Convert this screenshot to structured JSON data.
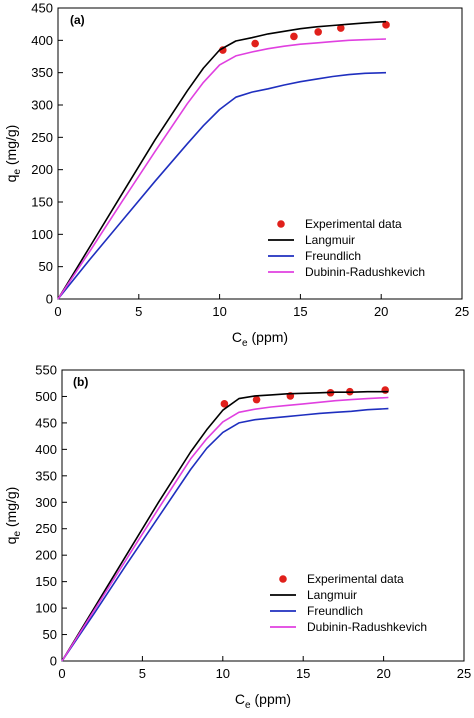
{
  "colors": {
    "experimental": "#e0201b",
    "langmuir": "#000000",
    "freundlich": "#1f2fbf",
    "dubinin": "#e040e0",
    "axis": "#000000"
  },
  "chart_data": [
    {
      "type": "line",
      "panel_label": "(a)",
      "xlabel": "C",
      "xlabel_sub": "e",
      "xlabel_unit": " (ppm)",
      "ylabel": "q",
      "ylabel_sub": "e",
      "ylabel_unit": " (mg/g)",
      "xlim": [
        0,
        25
      ],
      "ylim": [
        0,
        450
      ],
      "xticks": [
        0,
        5,
        10,
        15,
        20,
        25
      ],
      "yticks": [
        0,
        50,
        100,
        150,
        200,
        250,
        300,
        350,
        400,
        450
      ],
      "grid": false,
      "legend_position": "lower-right",
      "series": [
        {
          "name": "Experimental data",
          "kind": "scatter",
          "color_key": "experimental",
          "x": [
            10.2,
            12.2,
            14.6,
            16.1,
            17.5,
            20.3
          ],
          "y": [
            385,
            395,
            406,
            413,
            419,
            424
          ]
        },
        {
          "name": "Langmuir",
          "kind": "line",
          "color_key": "langmuir",
          "x": [
            0,
            2,
            4,
            6,
            8,
            9,
            10,
            11,
            12,
            13,
            14,
            15,
            16,
            17,
            18,
            19,
            20.3
          ],
          "y": [
            0,
            82,
            164,
            246,
            322,
            357,
            385,
            399,
            404,
            410,
            414,
            418,
            421,
            423,
            425,
            427,
            429
          ]
        },
        {
          "name": "Freundlich",
          "kind": "line",
          "color_key": "freundlich",
          "x": [
            0,
            2,
            4,
            6,
            8,
            9,
            10,
            11,
            12,
            13,
            14,
            15,
            16,
            17,
            18,
            19,
            20.3
          ],
          "y": [
            0,
            62,
            122,
            182,
            240,
            268,
            293,
            312,
            320,
            325,
            331,
            336,
            340,
            344,
            347,
            349,
            350
          ]
        },
        {
          "name": "Dubinin-Radushkevich",
          "kind": "line",
          "color_key": "dubinin",
          "x": [
            0,
            2,
            4,
            6,
            8,
            9,
            10,
            11,
            12,
            13,
            14,
            15,
            16,
            17,
            18,
            19,
            20.3
          ],
          "y": [
            0,
            75,
            152,
            228,
            302,
            335,
            362,
            376,
            382,
            387,
            391,
            394,
            396,
            398,
            400,
            401,
            402
          ]
        }
      ]
    },
    {
      "type": "line",
      "panel_label": "(b)",
      "xlabel": "C",
      "xlabel_sub": "e",
      "xlabel_unit": " (ppm)",
      "ylabel": "q",
      "ylabel_sub": "e",
      "ylabel_unit": " (mg/g)",
      "xlim": [
        0,
        25
      ],
      "ylim": [
        0,
        550
      ],
      "xticks": [
        0,
        5,
        10,
        15,
        20,
        25
      ],
      "yticks": [
        0,
        50,
        100,
        150,
        200,
        250,
        300,
        350,
        400,
        450,
        500,
        550
      ],
      "grid": false,
      "legend_position": "lower-right",
      "series": [
        {
          "name": "Experimental data",
          "kind": "scatter",
          "color_key": "experimental",
          "x": [
            10.1,
            12.1,
            14.2,
            16.7,
            17.9,
            20.1
          ],
          "y": [
            486,
            494,
            501,
            507,
            509,
            512
          ]
        },
        {
          "name": "Langmuir",
          "kind": "line",
          "color_key": "langmuir",
          "x": [
            0,
            2,
            4,
            6,
            8,
            9,
            10,
            11,
            12,
            13,
            14,
            15,
            16,
            17,
            18,
            19,
            20.3
          ],
          "y": [
            0,
            100,
            200,
            300,
            395,
            437,
            474,
            496,
            501,
            503,
            505,
            506,
            507,
            508,
            508,
            509,
            509
          ]
        },
        {
          "name": "Freundlich",
          "kind": "line",
          "color_key": "freundlich",
          "x": [
            0,
            2,
            4,
            6,
            8,
            9,
            10,
            11,
            12,
            13,
            14,
            15,
            16,
            17,
            18,
            19,
            20.3
          ],
          "y": [
            0,
            90,
            182,
            272,
            362,
            402,
            432,
            450,
            456,
            459,
            462,
            465,
            468,
            470,
            472,
            475,
            477
          ]
        },
        {
          "name": "Dubinin-Radushkevich",
          "kind": "line",
          "color_key": "dubinin",
          "x": [
            0,
            2,
            4,
            6,
            8,
            9,
            10,
            11,
            12,
            13,
            14,
            15,
            16,
            17,
            18,
            19,
            20.3
          ],
          "y": [
            0,
            96,
            192,
            288,
            382,
            420,
            452,
            470,
            476,
            480,
            483,
            486,
            489,
            492,
            494,
            496,
            498
          ]
        }
      ]
    }
  ]
}
